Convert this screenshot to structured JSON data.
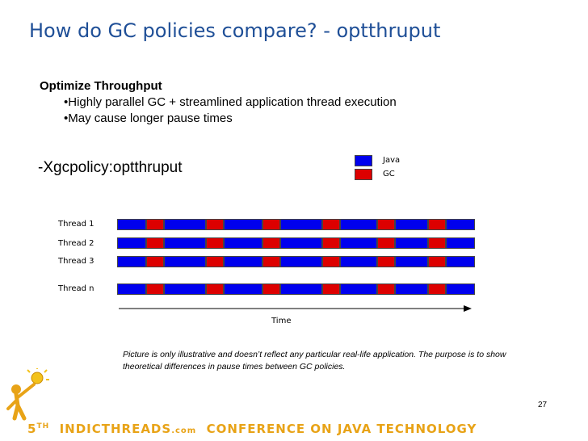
{
  "slide": {
    "title": "How do GC policies compare? - optthruput",
    "heading": "Optimize Throughput",
    "bullets": [
      "Highly parallel GC + streamlined application thread execution",
      "May cause longer pause times"
    ],
    "policy": "-Xgcpolicy:optthruput",
    "note": "Picture is only illustrative and doesn’t reflect any particular real-life application. The purpose is to show theoretical differences in pause times between GC policies.",
    "page_number": "27"
  },
  "diagram": {
    "legend": [
      {
        "label": "Java",
        "color": "#0000ee"
      },
      {
        "label": "GC",
        "color": "#dd0000"
      }
    ],
    "threads": [
      "Thread 1",
      "Thread 2",
      "Thread 3",
      "Thread n"
    ],
    "gc_pause_count": 6,
    "axis_label": "Time"
  },
  "footer": {
    "number": "5",
    "suffix": "TH",
    "brand": "INDICTHREADS",
    "brand_suffix": ".com",
    "text": "CONFERENCE ON JAVA TECHNOLOGY",
    "color": "#e8a317"
  }
}
